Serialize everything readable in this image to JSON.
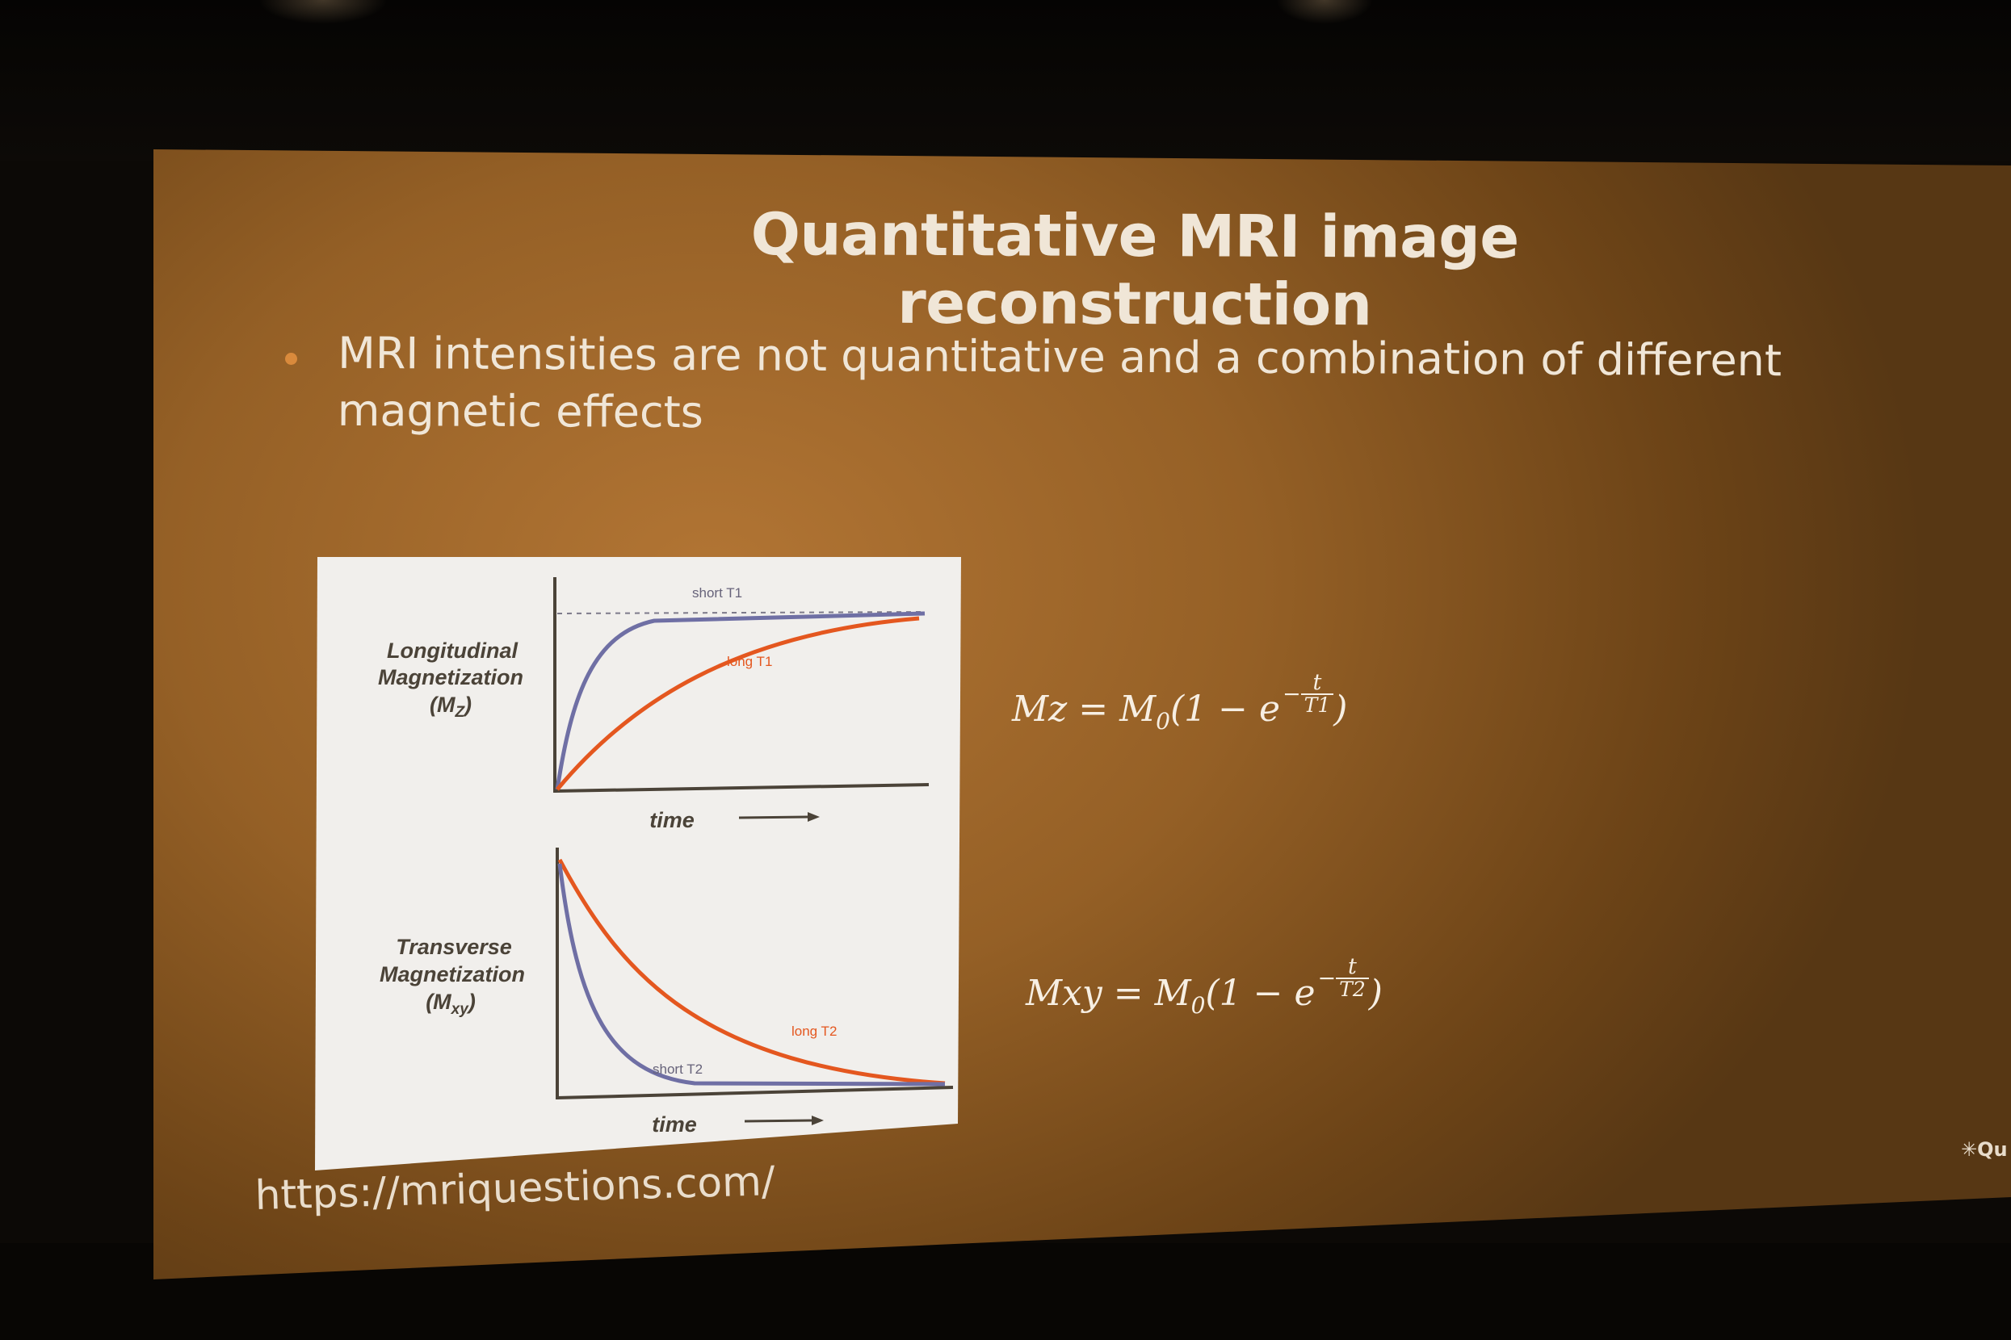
{
  "slide": {
    "title": "Quantitative MRI image reconstruction",
    "bullet": "MRI intensities are not quantitative and a combination of different magnetic effects",
    "source_url": "https://mriquestions.com/",
    "corner_logo": "Qu"
  },
  "figure": {
    "top_panel": {
      "ylabel_line1": "Longitudinal",
      "ylabel_line2": "Magnetization",
      "ylabel_line3": "(M",
      "ylabel_sub": "Z",
      "ylabel_close": ")",
      "xlabel": "time",
      "curve_labels": [
        "short T1",
        "long T1"
      ]
    },
    "bottom_panel": {
      "ylabel_line1": "Transverse",
      "ylabel_line2": "Magnetization",
      "ylabel_line3": "(M",
      "ylabel_sub": "xy",
      "ylabel_close": ")",
      "xlabel": "time",
      "curve_labels": [
        "long T2",
        "short T2"
      ]
    }
  },
  "equations": {
    "mz": {
      "lhs": "Mz",
      "rhs_a": "= M",
      "sub": "0",
      "rhs_b": "(1 − e",
      "exp_sign": "−",
      "exp_num": "t",
      "exp_den": "T1",
      "close": ")"
    },
    "mxy": {
      "lhs": "Mxy",
      "rhs_a": "= M",
      "sub": "0",
      "rhs_b": "(1 − e",
      "exp_sign": "−",
      "exp_num": "t",
      "exp_den": "T2",
      "close": ")"
    }
  },
  "colors": {
    "slide_bg": "#a06a2c",
    "text": "#f0e6d7",
    "bullet": "#d98a3c",
    "short_curve": "#6f6fa4",
    "long_curve": "#e4571f"
  }
}
